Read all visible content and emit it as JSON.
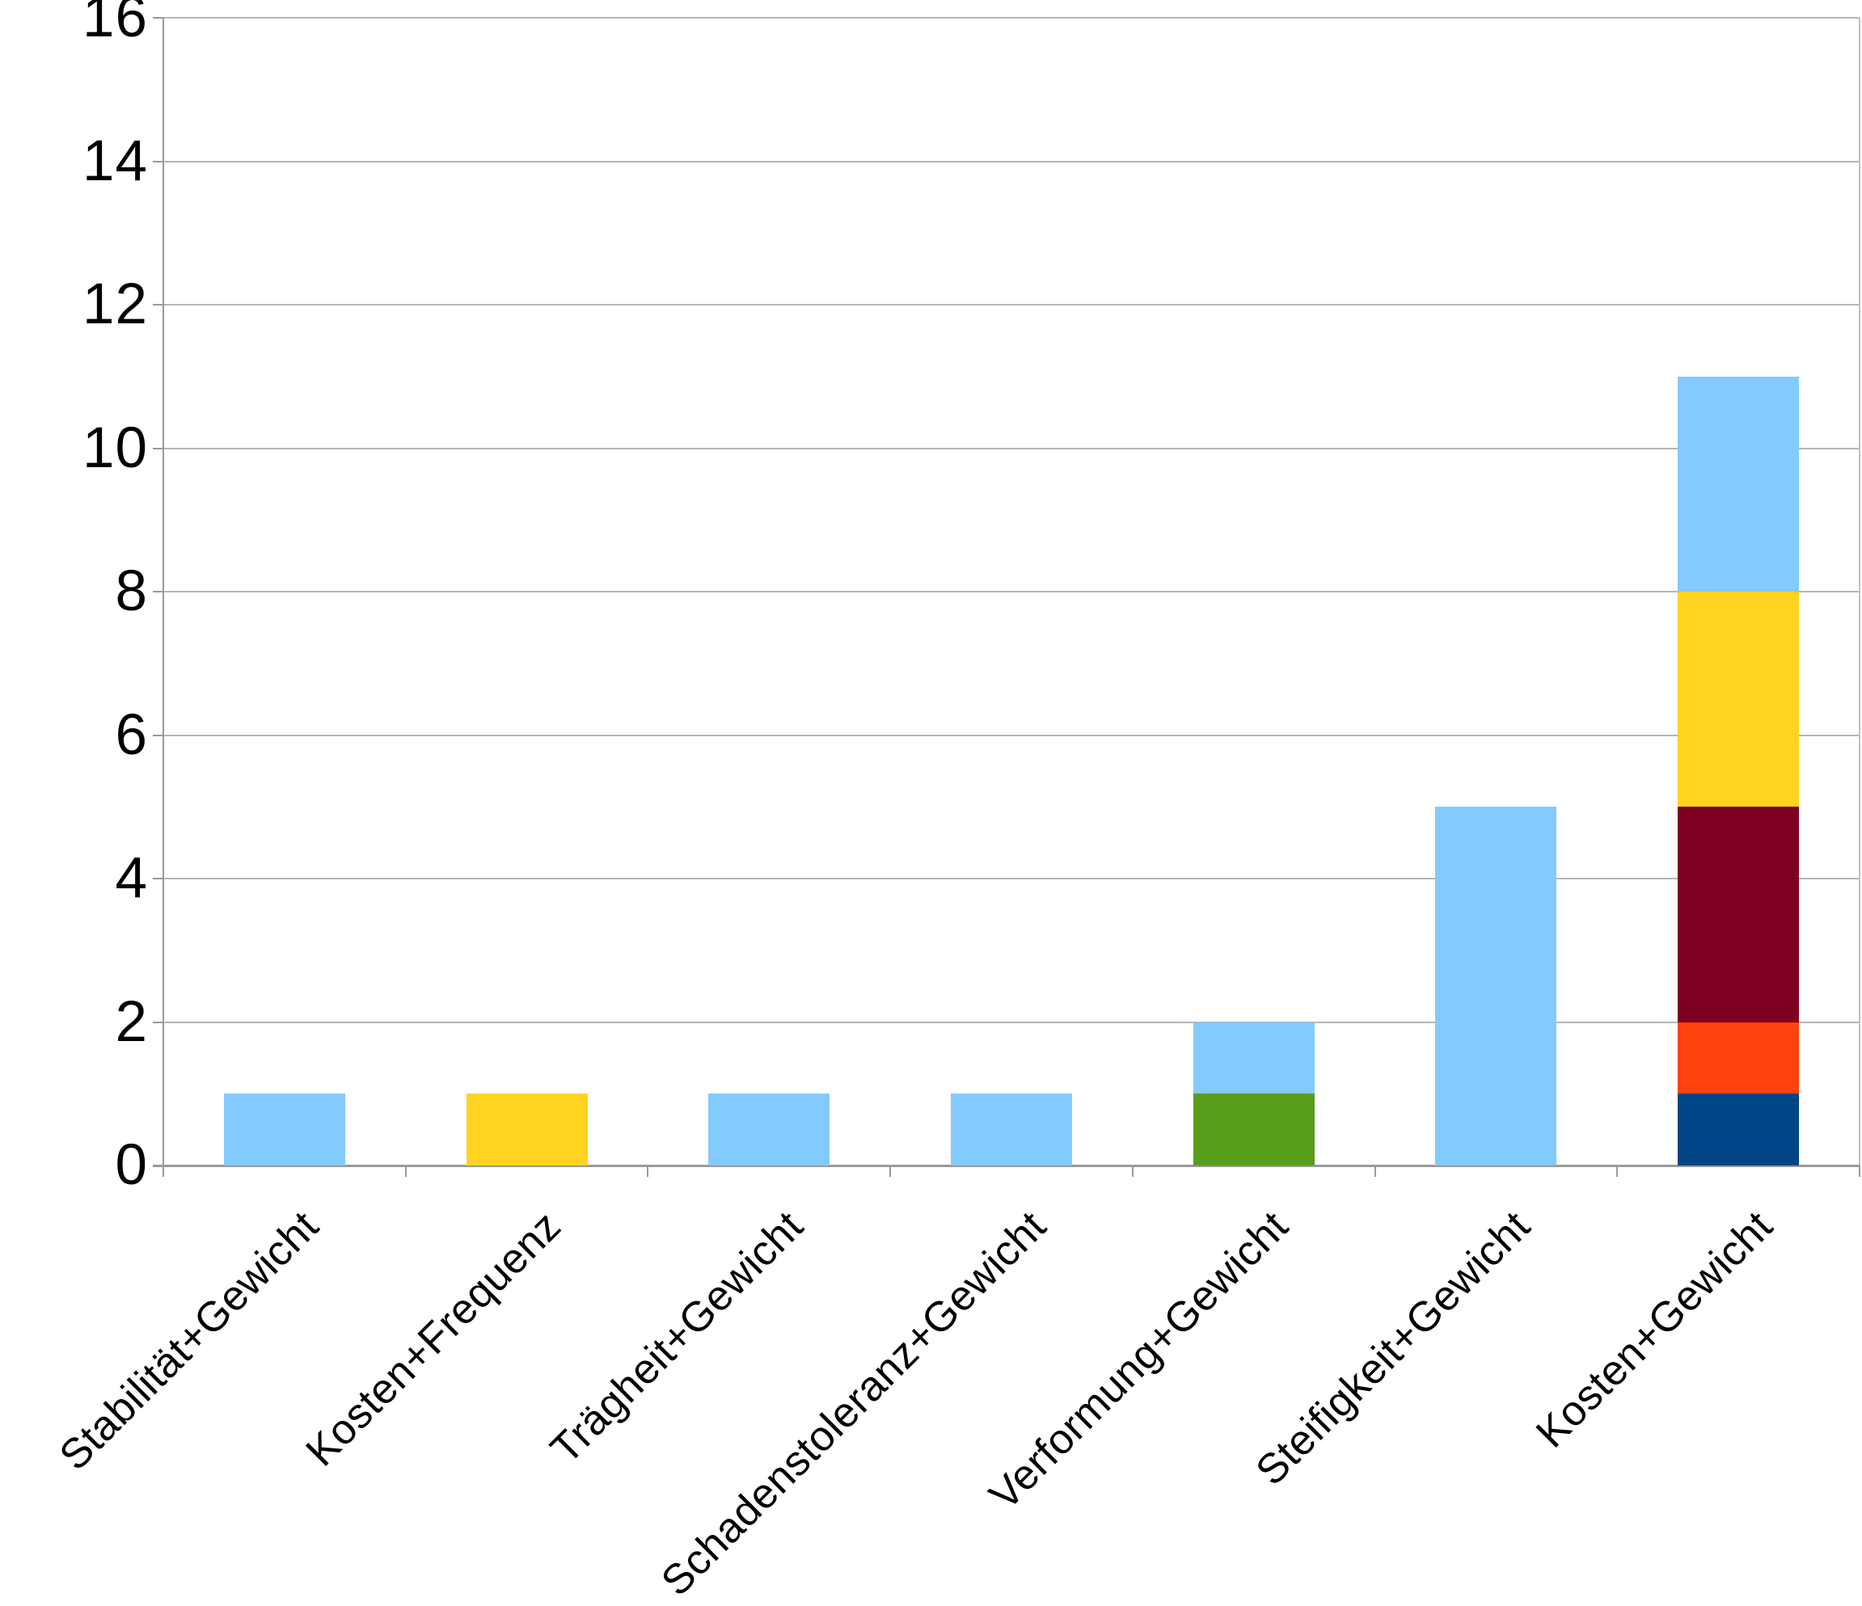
{
  "chart_data": {
    "type": "bar",
    "stacked": true,
    "title": "",
    "legend": false,
    "grid": true,
    "background": "#FFFFFF",
    "categories": [
      "Stabilität+Gewicht",
      "Kosten+Frequenz",
      "Trägheit+Gewicht",
      "Schadenstoleranz+Gewicht",
      "Verformung+Gewicht",
      "Steifigkeit+Gewicht",
      "Kosten+Gewicht"
    ],
    "bars": [
      {
        "category": "Stabilität+Gewicht",
        "total": 1,
        "segments": [
          {
            "value": 1,
            "color": "#83CAFF",
            "color_name": "light-blue"
          }
        ]
      },
      {
        "category": "Kosten+Frequenz",
        "total": 1,
        "segments": [
          {
            "value": 1,
            "color": "#FFD320",
            "color_name": "yellow"
          }
        ]
      },
      {
        "category": "Trägheit+Gewicht",
        "total": 1,
        "segments": [
          {
            "value": 1,
            "color": "#83CAFF",
            "color_name": "light-blue"
          }
        ]
      },
      {
        "category": "Schadenstoleranz+Gewicht",
        "total": 1,
        "segments": [
          {
            "value": 1,
            "color": "#83CAFF",
            "color_name": "light-blue"
          }
        ]
      },
      {
        "category": "Verformung+Gewicht",
        "total": 2,
        "segments": [
          {
            "value": 1,
            "color": "#579D1C",
            "color_name": "green"
          },
          {
            "value": 1,
            "color": "#83CAFF",
            "color_name": "light-blue"
          }
        ]
      },
      {
        "category": "Steifigkeit+Gewicht",
        "total": 5,
        "segments": [
          {
            "value": 5,
            "color": "#83CAFF",
            "color_name": "light-blue"
          }
        ]
      },
      {
        "category": "Kosten+Gewicht",
        "total": 11,
        "segments": [
          {
            "value": 1,
            "color": "#004586",
            "color_name": "dark-blue"
          },
          {
            "value": 1,
            "color": "#FF420E",
            "color_name": "orange-red"
          },
          {
            "value": 3,
            "color": "#7E0021",
            "color_name": "dark-red"
          },
          {
            "value": 3,
            "color": "#FFD320",
            "color_name": "yellow"
          },
          {
            "value": 3,
            "color": "#83CAFF",
            "color_name": "light-blue"
          }
        ]
      }
    ],
    "y_axis": {
      "min": 0,
      "max": 16,
      "tick_step": 2,
      "tick_labels": [
        "0",
        "2",
        "4",
        "6",
        "8",
        "10",
        "12",
        "14",
        "16"
      ]
    },
    "x_axis": {
      "label_rotation_deg": 45
    },
    "colors": {
      "gridline": "#B6B6B6",
      "axis": "#9A9A9A",
      "text": "#000000",
      "background": "#FFFFFF"
    }
  }
}
